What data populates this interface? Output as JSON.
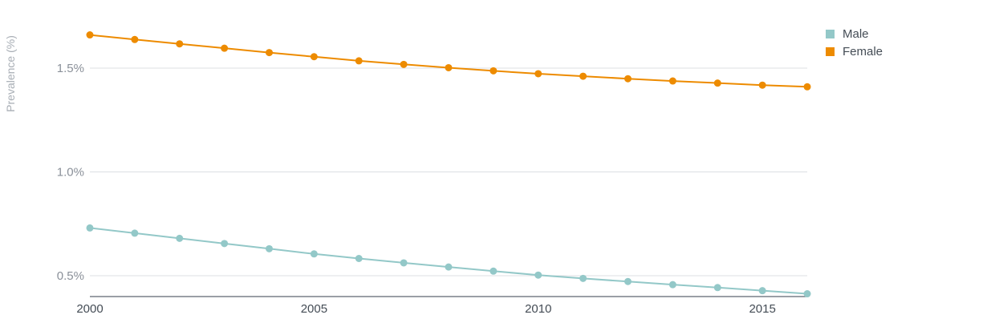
{
  "chart_data": {
    "type": "line",
    "ylabel": "Prevalence (%)",
    "xlim": [
      2000,
      2016
    ],
    "ylim": [
      0.4,
      1.75
    ],
    "y_ticks": [
      {
        "value": 0.5,
        "label": "0.5%"
      },
      {
        "value": 1.0,
        "label": "1.0%"
      },
      {
        "value": 1.5,
        "label": "1.5%"
      }
    ],
    "x_ticks": [
      {
        "value": 2000,
        "label": "2000"
      },
      {
        "value": 2005,
        "label": "2005"
      },
      {
        "value": 2010,
        "label": "2010"
      },
      {
        "value": 2015,
        "label": "2015"
      }
    ],
    "grid": true,
    "legend_position": "top-right",
    "x": [
      2000,
      2001,
      2002,
      2003,
      2004,
      2005,
      2006,
      2007,
      2008,
      2009,
      2010,
      2011,
      2012,
      2013,
      2014,
      2015,
      2016
    ],
    "series": [
      {
        "name": "Male",
        "color": "#93c8c8",
        "values": [
          0.73,
          0.705,
          0.68,
          0.655,
          0.63,
          0.605,
          0.583,
          0.562,
          0.542,
          0.522,
          0.503,
          0.487,
          0.472,
          0.457,
          0.443,
          0.428,
          0.413
        ]
      },
      {
        "name": "Female",
        "color": "#ed8b00",
        "values": [
          1.66,
          1.638,
          1.617,
          1.596,
          1.575,
          1.555,
          1.535,
          1.518,
          1.502,
          1.487,
          1.473,
          1.461,
          1.449,
          1.438,
          1.428,
          1.418,
          1.41
        ]
      }
    ]
  }
}
